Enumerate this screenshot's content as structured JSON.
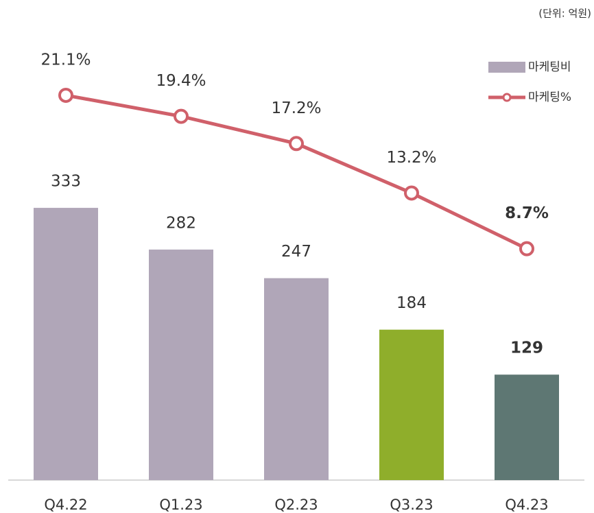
{
  "chart_data": {
    "type": "bar",
    "annotation": "(단위: 억원)",
    "categories": [
      "Q4.22",
      "Q1.23",
      "Q2.23",
      "Q3.23",
      "Q4.23"
    ],
    "series": [
      {
        "name": "마케팅비",
        "type": "bar",
        "color": "#b0a6b8",
        "colors": [
          "#b0a6b8",
          "#b0a6b8",
          "#b0a6b8",
          "#8fae2b",
          "#5e7773"
        ],
        "values": [
          333,
          282,
          247,
          184,
          129
        ]
      },
      {
        "name": "마케팅%",
        "type": "line",
        "axis": "y2",
        "color": "#d0606a",
        "values": [
          21.1,
          19.4,
          17.2,
          13.2,
          8.7
        ],
        "value_labels": [
          "21.1%",
          "19.4%",
          "17.2%",
          "13.2%",
          "8.7%"
        ]
      }
    ],
    "ylim": [
      0,
      560
    ],
    "y2lim": [
      -10,
      27
    ],
    "legend": "top-right"
  }
}
